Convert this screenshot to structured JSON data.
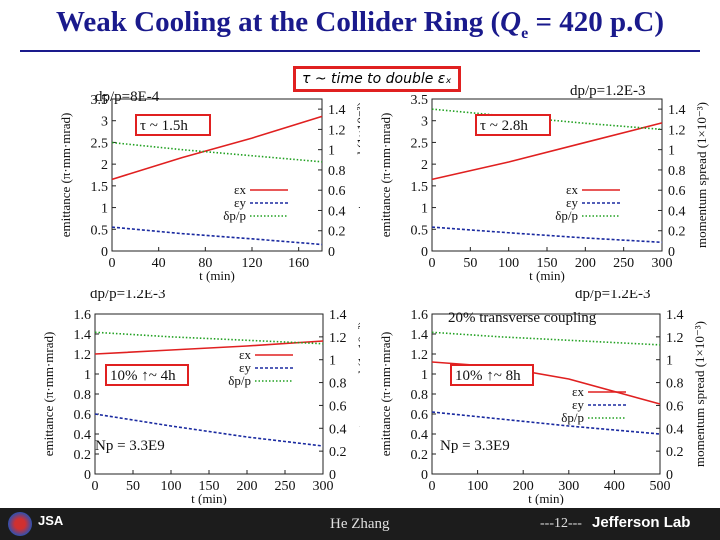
{
  "header": {
    "title_pre": "Weak Cooling at the Collider Ring (",
    "title_q": "Q",
    "title_sub": "e",
    "title_post": " = 420 p.C)"
  },
  "tau_definition": "τ ~ time to double εₓ",
  "footer": {
    "author": "He Zhang",
    "page": "---12---",
    "lab": "Jefferson Lab"
  },
  "chart_data": [
    {
      "type": "line",
      "dp_label": "dp/p=8E-4",
      "tau_label": "τ ~ 1.5h",
      "extra_labels": [],
      "xlabel": "t (min)",
      "ylabel": "emittance (π·mm·mrad)",
      "y2label": "momentum spread (1×10⁻³)",
      "xlim": [
        0,
        180
      ],
      "ylim": [
        0,
        3.5
      ],
      "y2lim": [
        0,
        1.5
      ],
      "xticks": [
        0,
        40,
        80,
        120,
        160
      ],
      "yticks": [
        0,
        0.5,
        1,
        1.5,
        2,
        2.5,
        3,
        3.5
      ],
      "y2ticks": [
        0,
        0.2,
        0.4,
        0.6,
        0.8,
        1,
        1.2,
        1.4
      ],
      "legend": [
        "εx",
        "εy",
        "δp/p"
      ],
      "series": [
        {
          "name": "εx",
          "axis": "left",
          "color": "#e02020",
          "style": "solid",
          "x": [
            0,
            60,
            120,
            180
          ],
          "y": [
            1.65,
            2.15,
            2.6,
            3.1
          ]
        },
        {
          "name": "εy",
          "axis": "left",
          "color": "#1a2aa0",
          "style": "dashed",
          "x": [
            0,
            60,
            120,
            180
          ],
          "y": [
            0.55,
            0.4,
            0.28,
            0.15
          ]
        },
        {
          "name": "δp/p",
          "axis": "right",
          "color": "#20a020",
          "style": "dotted",
          "x": [
            0,
            60,
            120,
            180
          ],
          "y": [
            1.07,
            1.0,
            0.94,
            0.88
          ]
        }
      ]
    },
    {
      "type": "line",
      "dp_label": "dp/p=1.2E-3",
      "tau_label": "τ ~ 2.8h",
      "extra_labels": [],
      "xlabel": "t (min)",
      "ylabel": "emittance (π·mm·mrad)",
      "y2label": "momentum spread (1×10⁻³)",
      "xlim": [
        0,
        300
      ],
      "ylim": [
        0,
        3.5
      ],
      "y2lim": [
        0,
        1.5
      ],
      "xticks": [
        0,
        50,
        100,
        150,
        200,
        250,
        300
      ],
      "yticks": [
        0,
        0.5,
        1,
        1.5,
        2,
        2.5,
        3,
        3.5
      ],
      "y2ticks": [
        0,
        0.2,
        0.4,
        0.6,
        0.8,
        1,
        1.2,
        1.4
      ],
      "legend": [
        "εx",
        "εy",
        "δp/p"
      ],
      "series": [
        {
          "name": "εx",
          "axis": "left",
          "color": "#e02020",
          "style": "solid",
          "x": [
            0,
            100,
            200,
            300
          ],
          "y": [
            1.65,
            2.05,
            2.5,
            2.95
          ]
        },
        {
          "name": "εy",
          "axis": "left",
          "color": "#1a2aa0",
          "style": "dashed",
          "x": [
            0,
            100,
            200,
            300
          ],
          "y": [
            0.55,
            0.42,
            0.3,
            0.2
          ]
        },
        {
          "name": "δp/p",
          "axis": "right",
          "color": "#20a020",
          "style": "dotted",
          "x": [
            0,
            100,
            200,
            300
          ],
          "y": [
            1.4,
            1.33,
            1.26,
            1.2
          ]
        }
      ]
    },
    {
      "type": "line",
      "dp_label": "dp/p=1.2E-3",
      "tau_label": "10% ↑~ 4h",
      "extra_labels": [
        "Np = 3.3E9"
      ],
      "xlabel": "t (min)",
      "ylabel": "emittance (π·mm·mrad)",
      "y2label": "momentum spread (1×10⁻³)",
      "xlim": [
        0,
        300
      ],
      "ylim": [
        0,
        1.6
      ],
      "y2lim": [
        0,
        1.4
      ],
      "xticks": [
        0,
        50,
        100,
        150,
        200,
        250,
        300
      ],
      "yticks": [
        0,
        0.2,
        0.4,
        0.6,
        0.8,
        1,
        1.2,
        1.4,
        1.6
      ],
      "y2ticks": [
        0,
        0.2,
        0.4,
        0.6,
        0.8,
        1,
        1.2,
        1.4
      ],
      "legend": [
        "εx",
        "εy",
        "δp/p"
      ],
      "series": [
        {
          "name": "εx",
          "axis": "left",
          "color": "#e02020",
          "style": "solid",
          "x": [
            0,
            100,
            200,
            300
          ],
          "y": [
            1.2,
            1.24,
            1.28,
            1.33
          ]
        },
        {
          "name": "εy",
          "axis": "left",
          "color": "#1a2aa0",
          "style": "dashed",
          "x": [
            0,
            100,
            200,
            300
          ],
          "y": [
            0.6,
            0.48,
            0.37,
            0.28
          ]
        },
        {
          "name": "δp/p",
          "axis": "right",
          "color": "#20a020",
          "style": "dotted",
          "x": [
            0,
            100,
            200,
            300
          ],
          "y": [
            1.24,
            1.2,
            1.17,
            1.14
          ]
        }
      ]
    },
    {
      "type": "line",
      "dp_label": "dp/p=1.2E-3",
      "tau_label": "10% ↑~ 8h",
      "extra_labels": [
        "20% transverse coupling",
        "Np = 3.3E9"
      ],
      "xlabel": "t (min)",
      "ylabel": "emittance (π·mm·mrad)",
      "y2label": "momentum spread (1×10⁻³)",
      "xlim": [
        0,
        500
      ],
      "ylim": [
        0,
        1.6
      ],
      "y2lim": [
        0,
        1.4
      ],
      "xticks": [
        0,
        100,
        200,
        300,
        400,
        500
      ],
      "yticks": [
        0,
        0.2,
        0.4,
        0.6,
        0.8,
        1,
        1.2,
        1.4,
        1.6
      ],
      "y2ticks": [
        0,
        0.2,
        0.4,
        0.6,
        0.8,
        1,
        1.2,
        1.4
      ],
      "legend": [
        "εx",
        "εy",
        "δp/p"
      ],
      "series": [
        {
          "name": "εx",
          "axis": "left",
          "color": "#e02020",
          "style": "solid",
          "x": [
            0,
            150,
            300,
            500
          ],
          "y": [
            1.12,
            1.07,
            0.95,
            0.7
          ]
        },
        {
          "name": "εy",
          "axis": "left",
          "color": "#1a2aa0",
          "style": "dashed",
          "x": [
            0,
            150,
            300,
            500
          ],
          "y": [
            0.62,
            0.55,
            0.48,
            0.4
          ]
        },
        {
          "name": "δp/p",
          "axis": "right",
          "color": "#20a020",
          "style": "dotted",
          "x": [
            0,
            150,
            300,
            500
          ],
          "y": [
            1.24,
            1.2,
            1.17,
            1.13
          ]
        }
      ]
    }
  ]
}
